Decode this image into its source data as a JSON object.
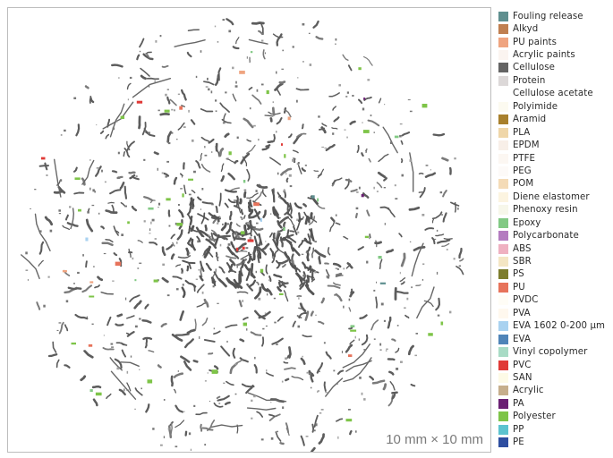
{
  "scale_label": "10 mm × 10 mm",
  "legend": [
    {
      "label": "Fouling release",
      "color": "#5f8f8f"
    },
    {
      "label": "Alkyd",
      "color": "#c07f50"
    },
    {
      "label": "PU paints",
      "color": "#efa480"
    },
    {
      "label": "Acrylic paints",
      "color": "#fbf4f0"
    },
    {
      "label": "Cellulose",
      "color": "#646464"
    },
    {
      "label": "Protein",
      "color": "#dcd8d8"
    },
    {
      "label": "Cellulose acetate",
      "color": "#ffffff"
    },
    {
      "label": "Polyimide",
      "color": "#fcfaf0"
    },
    {
      "label": "Aramid",
      "color": "#a8802c"
    },
    {
      "label": "PLA",
      "color": "#efd6a8"
    },
    {
      "label": "EPDM",
      "color": "#f8efe8"
    },
    {
      "label": "PTFE",
      "color": "#fcf7f2"
    },
    {
      "label": "PEG",
      "color": "#fdfaf8"
    },
    {
      "label": "POM",
      "color": "#f4dbb7"
    },
    {
      "label": "Diene elastomer",
      "color": "#fcf4e0"
    },
    {
      "label": "Phenoxy resin",
      "color": "#f7f7ea"
    },
    {
      "label": "Epoxy",
      "color": "#82c984"
    },
    {
      "label": "Polycarbonate",
      "color": "#b47cc0"
    },
    {
      "label": "ABS",
      "color": "#efb1c1"
    },
    {
      "label": "SBR",
      "color": "#f4e6c4"
    },
    {
      "label": "PS",
      "color": "#7d7d2d"
    },
    {
      "label": "PU",
      "color": "#e7735b"
    },
    {
      "label": "PVDC",
      "color": "#fffdf6"
    },
    {
      "label": "PVA",
      "color": "#fff8ee"
    },
    {
      "label": "EVA 1602 0-200 µm",
      "color": "#a9d2f0"
    },
    {
      "label": "EVA",
      "color": "#4f84b8"
    },
    {
      "label": "Vinyl copolymer",
      "color": "#a8dbc5"
    },
    {
      "label": "PVC",
      "color": "#e03a37"
    },
    {
      "label": "SAN",
      "color": "#fdfae6"
    },
    {
      "label": "Acrylic",
      "color": "#c6ae8c"
    },
    {
      "label": "PA",
      "color": "#6a2073"
    },
    {
      "label": "Polyester",
      "color": "#7ec448"
    },
    {
      "label": "PP",
      "color": "#5cc3cf"
    },
    {
      "label": "PE",
      "color": "#2e4ea0"
    }
  ]
}
